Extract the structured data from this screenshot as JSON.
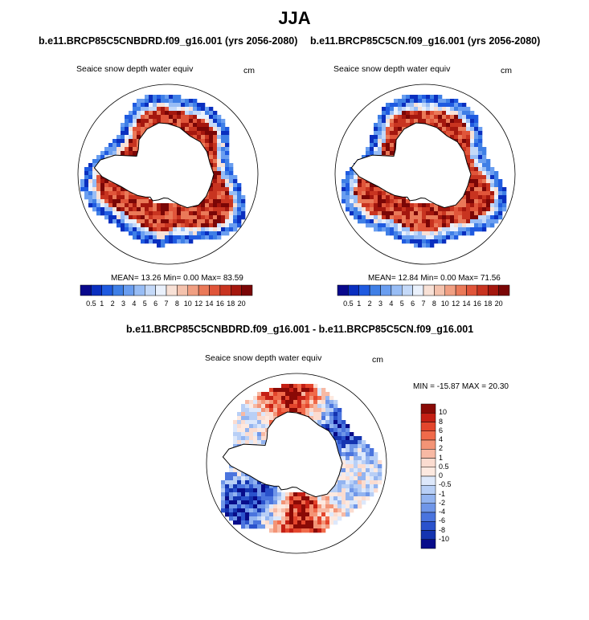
{
  "title": "JJA",
  "panels": [
    {
      "case_title": "b.e11.BRCP85C5CNBDRD.f09_g16.001 (yrs 2056-2080)",
      "variable": "Seaice snow depth water equiv",
      "units": "cm",
      "mean_label": "MEAN=",
      "mean": "13.26",
      "min_label": "Min=",
      "min": "0.00",
      "max_label": "Max=",
      "max": "83.59"
    },
    {
      "case_title": "b.e11.BRCP85C5CN.f09_g16.001 (yrs 2056-2080)",
      "variable": "Seaice snow depth water equiv",
      "units": "cm",
      "mean_label": "MEAN=",
      "mean": "12.84",
      "min_label": "Min=",
      "min": "0.00",
      "max_label": "Max=",
      "max": "71.56"
    }
  ],
  "diff_panel": {
    "title": "b.e11.BRCP85C5CNBDRD.f09_g16.001 - b.e11.BRCP85C5CN.f09_g16.001",
    "variable": "Seaice snow depth water equiv",
    "units": "cm",
    "minmax_text": "MIN = -15.87 MAX =  20.30"
  },
  "chart_data": [
    {
      "type": "heatmap",
      "projection": "south polar stereographic",
      "title": "b.e11.BRCP85C5CNBDRD.f09_g16.001 (yrs 2056-2080)",
      "variable": "Seaice snow depth water equiv",
      "units": "cm",
      "mean": 13.26,
      "min": 0.0,
      "max": 83.59,
      "colorbar_levels": [
        "0.5",
        "1",
        "2",
        "3",
        "4",
        "5",
        "6",
        "7",
        "8",
        "10",
        "12",
        "14",
        "16",
        "18",
        "20"
      ]
    },
    {
      "type": "heatmap",
      "projection": "south polar stereographic",
      "title": "b.e11.BRCP85C5CN.f09_g16.001 (yrs 2056-2080)",
      "variable": "Seaice snow depth water equiv",
      "units": "cm",
      "mean": 12.84,
      "min": 0.0,
      "max": 71.56,
      "colorbar_levels": [
        "0.5",
        "1",
        "2",
        "3",
        "4",
        "5",
        "6",
        "7",
        "8",
        "10",
        "12",
        "14",
        "16",
        "18",
        "20"
      ]
    },
    {
      "type": "heatmap",
      "projection": "south polar stereographic",
      "title": "b.e11.BRCP85C5CNBDRD.f09_g16.001 - b.e11.BRCP85C5CN.f09_g16.001",
      "variable": "Seaice snow depth water equiv",
      "units": "cm",
      "min": -15.87,
      "max": 20.3,
      "colorbar_levels": [
        "10",
        "8",
        "6",
        "4",
        "2",
        "1",
        "0.5",
        "0",
        "-0.5",
        "-1",
        "-2",
        "-4",
        "-6",
        "-8",
        "-10"
      ]
    }
  ],
  "colors": {
    "abs_scale": [
      "#08088c",
      "#0a2fbf",
      "#1f5ae0",
      "#3f7fe6",
      "#6a9ef0",
      "#98bdf5",
      "#c4d9f8",
      "#eaf1fc",
      "#f8e1d6",
      "#f4c2ad",
      "#f09f82",
      "#ea7958",
      "#e0553a",
      "#c83420",
      "#a4170e",
      "#7a0606"
    ],
    "diff_scale": [
      "#8a0a06",
      "#c41f14",
      "#e3452c",
      "#f06a4a",
      "#f39476",
      "#f7b9a4",
      "#fbdcd0",
      "#fde9e0",
      "#dde8fb",
      "#b8cff6",
      "#93b4f0",
      "#6f96e8",
      "#4a74de",
      "#2a52cc",
      "#1434b0",
      "#080c8a"
    ],
    "antarctica": "#ffffff",
    "coast": "#000000"
  }
}
